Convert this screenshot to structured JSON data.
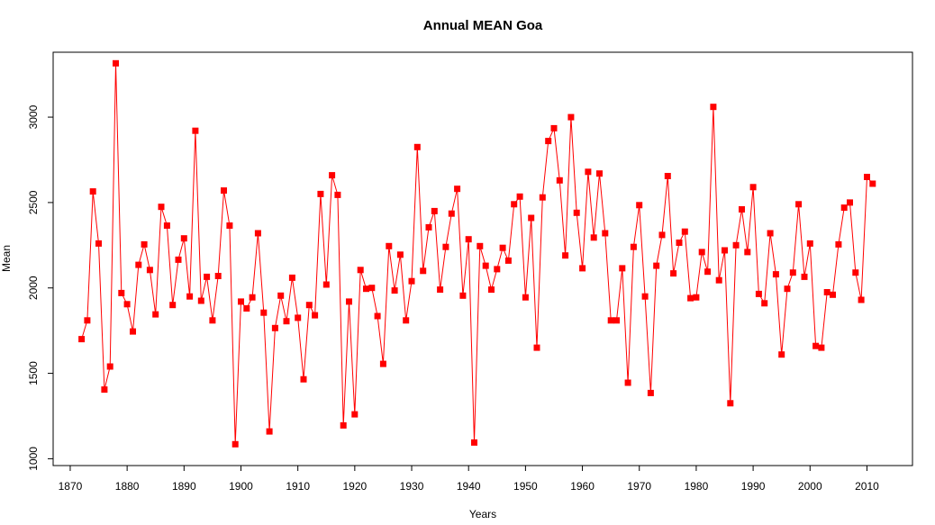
{
  "chart_data": {
    "type": "line",
    "title": "Annual MEAN Goa",
    "xlabel": "Years",
    "ylabel": "Mean",
    "xlim": [
      1867,
      2018
    ],
    "ylim": [
      960,
      3380
    ],
    "xticks": [
      1870,
      1880,
      1890,
      1900,
      1910,
      1920,
      1930,
      1940,
      1950,
      1960,
      1970,
      1980,
      1990,
      2000,
      2010
    ],
    "yticks": [
      1000,
      1500,
      2000,
      2500,
      3000
    ],
    "grid": false,
    "marker": "square",
    "color": "#ff0000",
    "series": [
      {
        "x": [
          1872,
          1873,
          1874,
          1875,
          1876,
          1877,
          1878,
          1879,
          1880,
          1881,
          1882,
          1883,
          1884,
          1885,
          1886,
          1887,
          1888,
          1889,
          1890,
          1891,
          1892,
          1893,
          1894,
          1895,
          1896,
          1897,
          1898,
          1899,
          1900,
          1901,
          1902,
          1903,
          1904,
          1905,
          1906,
          1907,
          1908,
          1909,
          1910,
          1911,
          1912,
          1913,
          1914,
          1915,
          1916,
          1917,
          1918,
          1919,
          1920,
          1921,
          1922,
          1923,
          1924,
          1925,
          1926,
          1927,
          1928,
          1929,
          1930,
          1931,
          1932,
          1933,
          1934,
          1935,
          1936,
          1937,
          1938,
          1939,
          1940,
          1941,
          1942,
          1943,
          1944,
          1945,
          1946,
          1947,
          1948,
          1949,
          1950,
          1951,
          1952,
          1953,
          1954,
          1955,
          1956,
          1957,
          1958,
          1959,
          1960,
          1961,
          1962,
          1963,
          1964,
          1965,
          1966,
          1967,
          1968,
          1969,
          1970,
          1971,
          1972,
          1973,
          1974,
          1975,
          1976,
          1977,
          1978,
          1979,
          1980,
          1981,
          1982,
          1983,
          1984,
          1985,
          1986,
          1987,
          1988,
          1989,
          1990,
          1991,
          1992,
          1993,
          1994,
          1995,
          1996,
          1997,
          1998,
          1999,
          2000,
          2001,
          2002,
          2003,
          2004,
          2005,
          2006,
          2007,
          2008,
          2009,
          2010,
          2011
        ],
        "values": [
          1700,
          1810,
          2565,
          2260,
          1405,
          1540,
          3315,
          1970,
          1905,
          1745,
          2135,
          2255,
          2105,
          1845,
          2475,
          2365,
          1900,
          2165,
          2290,
          1950,
          2920,
          1925,
          2065,
          1810,
          2070,
          2570,
          2365,
          1085,
          1920,
          1880,
          1945,
          2320,
          1855,
          1160,
          1765,
          1955,
          1805,
          2060,
          1825,
          1465,
          1900,
          1840,
          2550,
          2020,
          2660,
          2545,
          1195,
          1920,
          1260,
          2105,
          1995,
          2000,
          1835,
          1555,
          2245,
          1985,
          2195,
          1810,
          2040,
          2825,
          2100,
          2355,
          2450,
          1990,
          2240,
          2435,
          2580,
          1955,
          2285,
          1095,
          2245,
          2130,
          1990,
          2110,
          2235,
          2160,
          2490,
          2535,
          1945,
          2410,
          1650,
          2530,
          2860,
          2935,
          2630,
          2190,
          3000,
          2440,
          2115,
          2680,
          2295,
          2670,
          2320,
          1810,
          1810,
          2115,
          1445,
          2240,
          2485,
          1950,
          1385,
          2130,
          2310,
          2655,
          2085,
          2265,
          2330,
          1940,
          1945,
          2210,
          2095,
          3060,
          2045,
          2220,
          1325,
          2250,
          2460,
          2210,
          2590,
          1965,
          1910,
          2320,
          2080,
          1610,
          1995,
          2090,
          2490,
          2065,
          2260,
          1660,
          1650,
          1975,
          1960,
          2255,
          2470,
          2500,
          2090,
          1930,
          2650,
          2610
        ]
      }
    ]
  }
}
